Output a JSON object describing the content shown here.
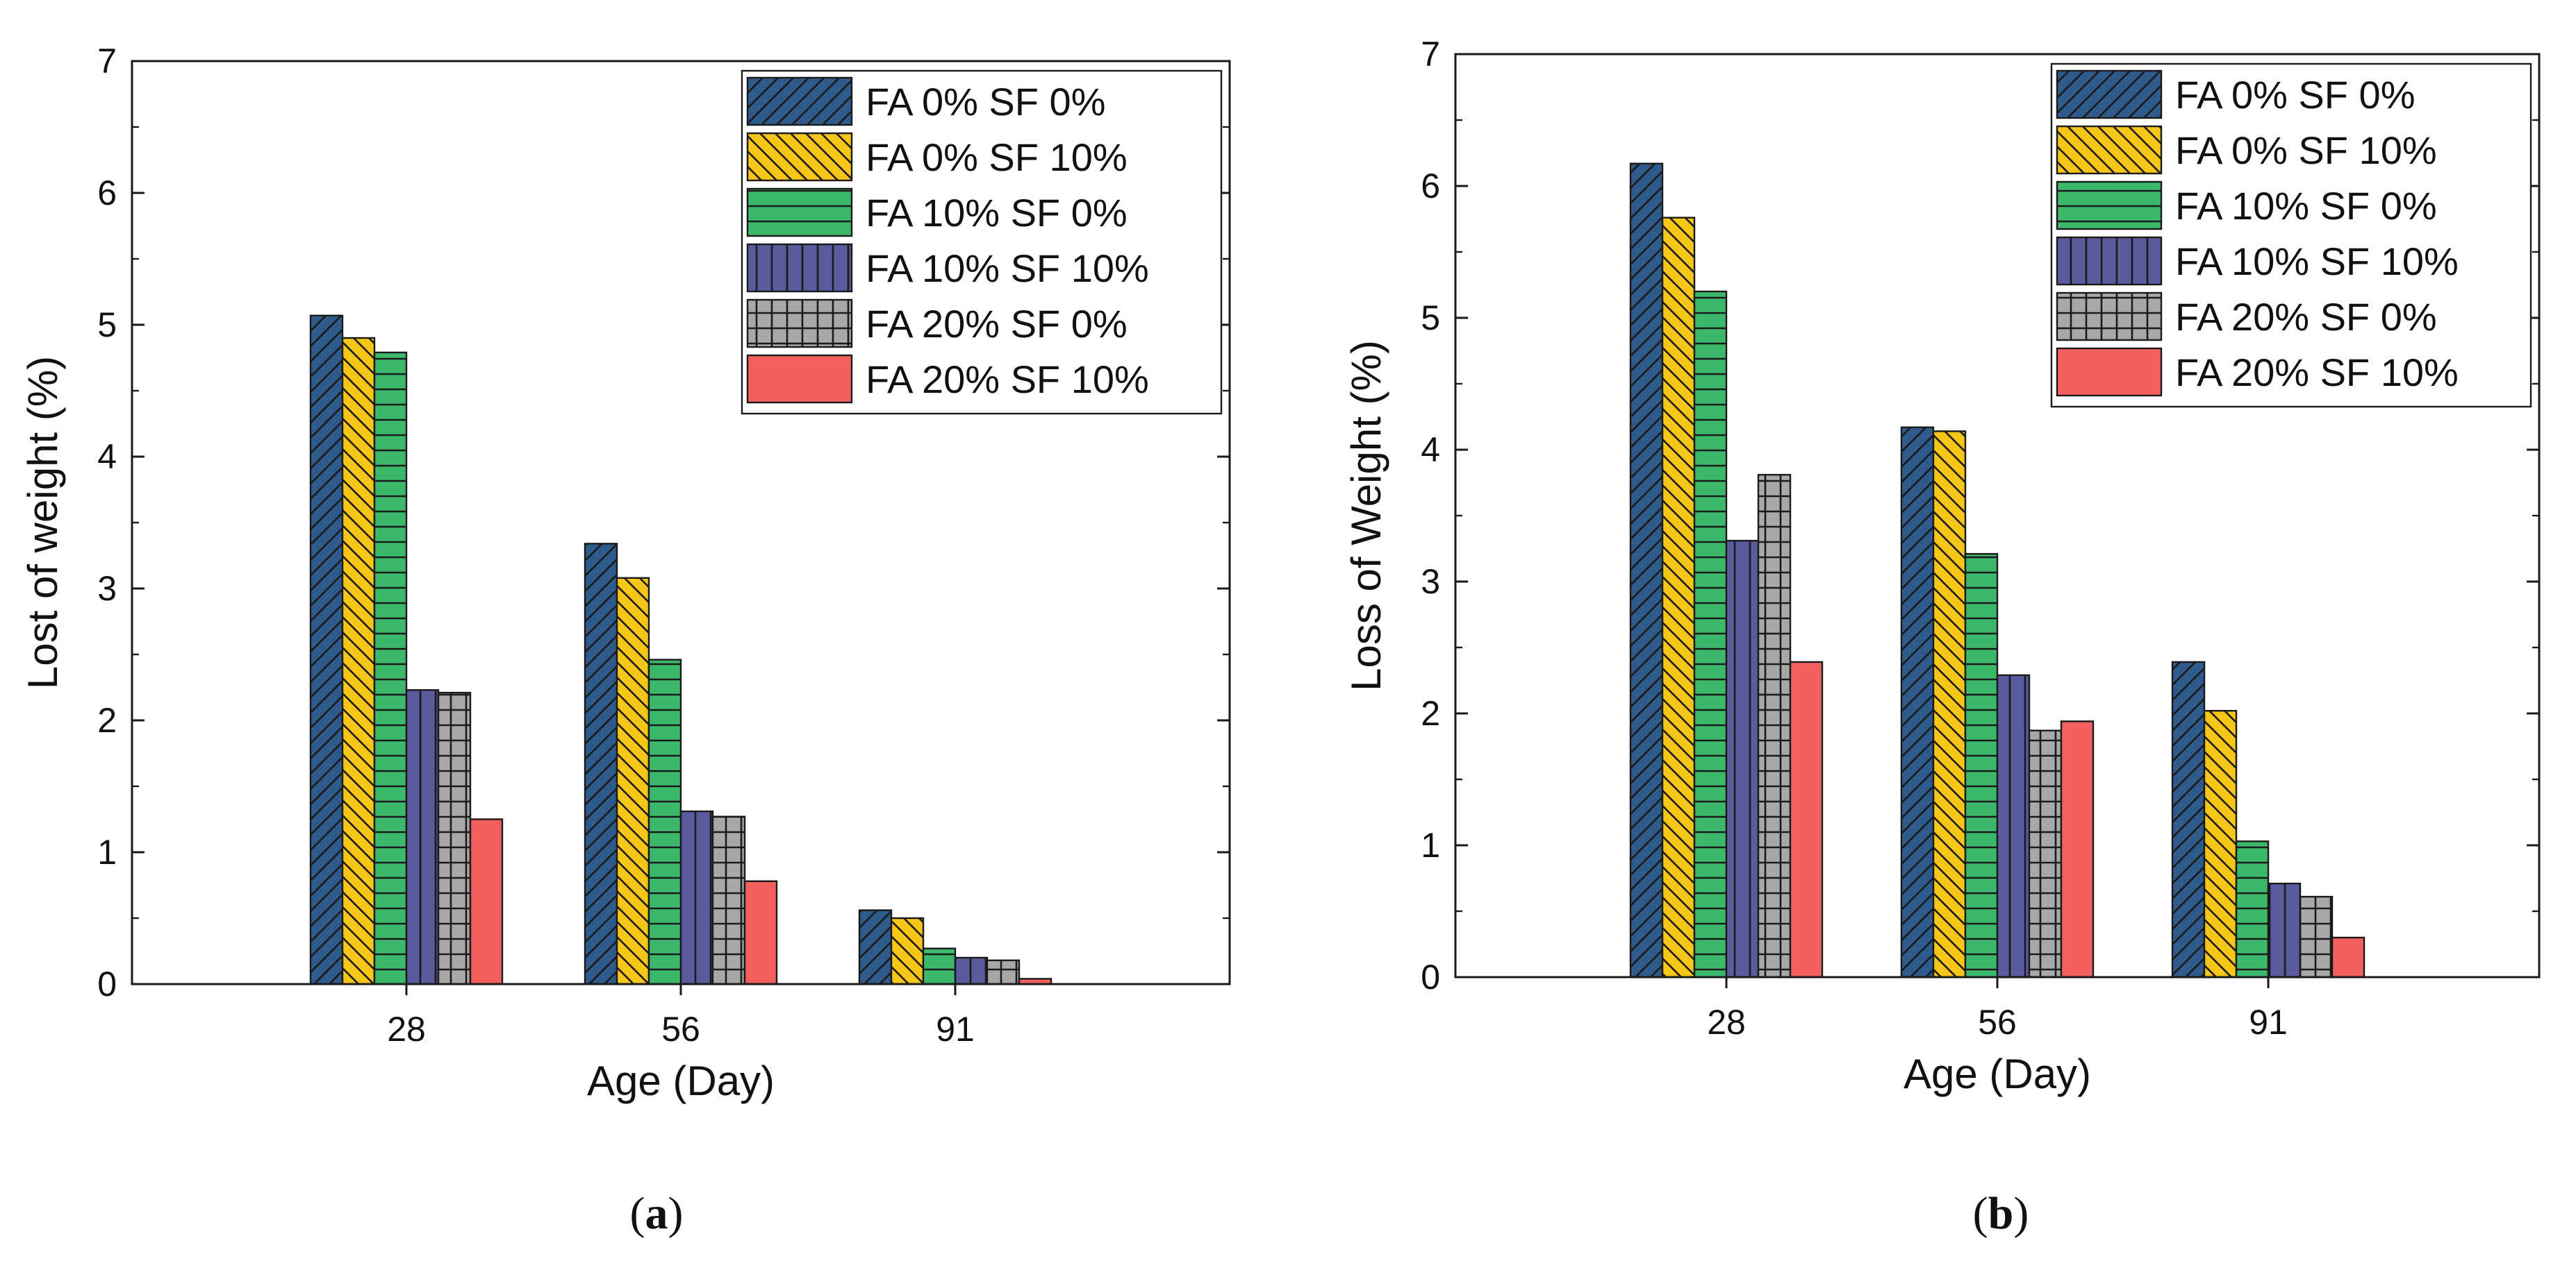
{
  "chart_data": [
    {
      "type": "bar",
      "panel": "a",
      "caption": {
        "open": "(",
        "letter": "a",
        "close": ")"
      },
      "title": "",
      "xlabel": "Age (Day)",
      "ylabel": "Lost of weight (%)",
      "ylim": [
        0,
        7
      ],
      "yticks": [
        0,
        1,
        2,
        3,
        4,
        5,
        6,
        7
      ],
      "categories": [
        "28",
        "56",
        "91"
      ],
      "legend_position": "top-right",
      "series": [
        {
          "name": "FA 0% SF 0%",
          "color": "#2E5A8C",
          "pattern": "diagonal-back",
          "values": [
            5.07,
            3.34,
            0.56
          ]
        },
        {
          "name": "FA 0% SF 10%",
          "color": "#F5C518",
          "pattern": "diagonal-fwd",
          "values": [
            4.9,
            3.08,
            0.5
          ]
        },
        {
          "name": "FA 10% SF 0%",
          "color": "#3CB86A",
          "pattern": "horizontal",
          "values": [
            4.79,
            2.46,
            0.27
          ]
        },
        {
          "name": "FA 10% SF 10%",
          "color": "#5A5A9E",
          "pattern": "vertical",
          "values": [
            2.23,
            1.31,
            0.2
          ]
        },
        {
          "name": "FA 20% SF 0%",
          "color": "#A8A8A8",
          "pattern": "grid",
          "values": [
            2.21,
            1.27,
            0.18
          ]
        },
        {
          "name": "FA 20% SF 10%",
          "color": "#F26060",
          "pattern": "solid",
          "values": [
            1.25,
            0.78,
            0.04
          ]
        }
      ]
    },
    {
      "type": "bar",
      "panel": "b",
      "caption": {
        "open": "(",
        "letter": "b",
        "close": ")"
      },
      "title": "",
      "xlabel": "Age (Day)",
      "ylabel": "Loss of Weight (%)",
      "ylim": [
        0,
        7
      ],
      "yticks": [
        0,
        1,
        2,
        3,
        4,
        5,
        6,
        7
      ],
      "categories": [
        "28",
        "56",
        "91"
      ],
      "legend_position": "top-right",
      "series": [
        {
          "name": "FA 0% SF 0%",
          "color": "#2E5A8C",
          "pattern": "diagonal-back",
          "values": [
            6.17,
            4.17,
            2.39
          ]
        },
        {
          "name": "FA 0% SF 10%",
          "color": "#F5C518",
          "pattern": "diagonal-fwd",
          "values": [
            5.76,
            4.14,
            2.02
          ]
        },
        {
          "name": "FA 10% SF 0%",
          "color": "#3CB86A",
          "pattern": "horizontal",
          "values": [
            5.2,
            3.21,
            1.03
          ]
        },
        {
          "name": "FA 10% SF 10%",
          "color": "#5A5A9E",
          "pattern": "vertical",
          "values": [
            3.31,
            2.29,
            0.71
          ]
        },
        {
          "name": "FA 20% SF 0%",
          "color": "#A8A8A8",
          "pattern": "grid",
          "values": [
            3.81,
            1.87,
            0.61
          ]
        },
        {
          "name": "FA 20% SF 10%",
          "color": "#F26060",
          "pattern": "solid",
          "values": [
            2.39,
            1.94,
            0.3
          ]
        }
      ]
    }
  ]
}
